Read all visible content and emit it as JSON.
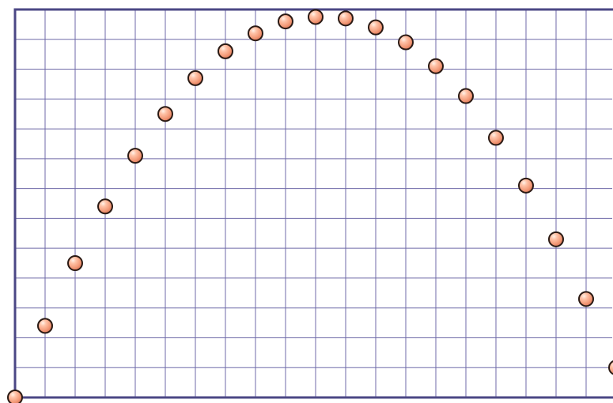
{
  "chart_data": {
    "type": "scatter",
    "title": "",
    "xlabel": "",
    "ylabel": "",
    "xlim": [
      0,
      20
    ],
    "ylim": [
      0,
      13
    ],
    "grid": true,
    "x_grid_step": 1,
    "y_grid_step": 1,
    "marker_style": "sphere",
    "marker_color": "#f39a78",
    "series": [
      {
        "x": [
          0,
          1,
          2,
          3,
          4,
          5,
          6,
          7,
          8,
          9,
          10,
          11,
          12,
          13,
          14,
          15,
          16,
          17,
          18,
          19,
          20
        ],
        "values": [
          0,
          2.4,
          4.5,
          6.4,
          8.1,
          9.5,
          10.7,
          11.6,
          12.2,
          12.6,
          12.75,
          12.7,
          12.4,
          11.9,
          11.1,
          10.1,
          8.7,
          7.1,
          5.3,
          3.3,
          1.0
        ]
      }
    ]
  }
}
